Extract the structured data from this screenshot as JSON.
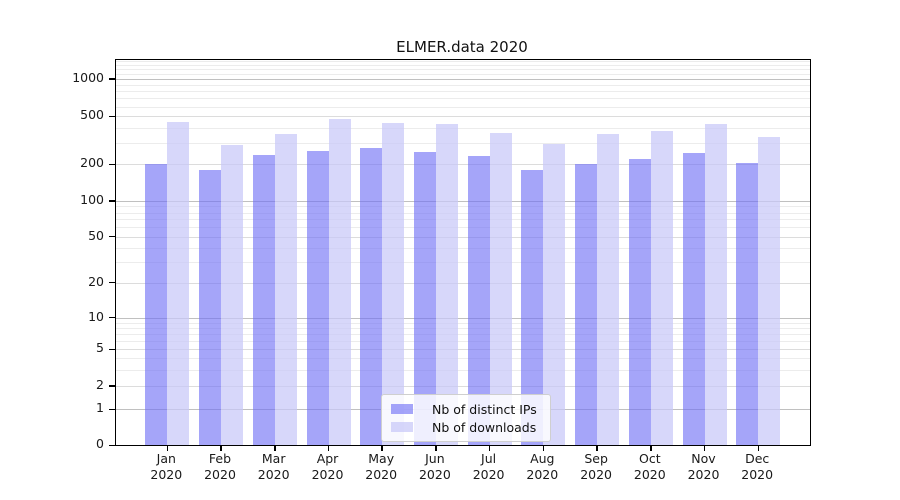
{
  "chart_data": {
    "type": "bar",
    "title": "ELMER.data 2020",
    "categories": [
      "Jan",
      "Feb",
      "Mar",
      "Apr",
      "May",
      "Jun",
      "Jul",
      "Aug",
      "Sep",
      "Oct",
      "Nov",
      "Dec"
    ],
    "category_year": "2020",
    "series": [
      {
        "name": "Nb of distinct IPs",
        "color": "rgba(110,110,245,0.62)",
        "values": [
          202,
          179,
          240,
          260,
          272,
          255,
          233,
          181,
          201,
          222,
          248,
          207
        ]
      },
      {
        "name": "Nb of downloads",
        "color": "rgba(200,200,248,0.72)",
        "values": [
          445,
          290,
          360,
          478,
          440,
          430,
          365,
          293,
          355,
          378,
          430,
          338
        ]
      }
    ],
    "yscale": "symlog",
    "y_ticks": [
      0,
      1,
      2,
      5,
      10,
      20,
      50,
      100,
      200,
      500,
      1000
    ],
    "ylim": [
      0,
      1400
    ],
    "xlabel": "",
    "ylabel": "",
    "grid": "on",
    "legend_position": "lower-center"
  },
  "colors": {
    "bar_distinct_ips": "rgba(110,110,245,0.62)",
    "bar_downloads": "rgba(200,200,248,0.72)",
    "grid_decade": "#c0c0c0",
    "grid_labeled": "#dcdcdc",
    "grid_minor": "#ececec",
    "axis": "#000000",
    "background": "#ffffff"
  }
}
